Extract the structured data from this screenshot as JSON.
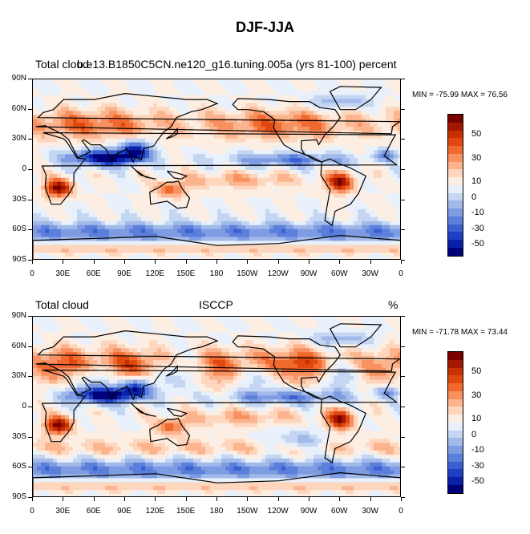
{
  "figure": {
    "title": "DJF-JJA"
  },
  "panels": [
    {
      "left_title": "Total cloud",
      "center_title": "b.e13.B1850C5CN.ne120_g16.tuning.005a (yrs 81-100) percent",
      "right_title": "",
      "min_max_text": "MIN = -75.99 MAX =  76.56"
    },
    {
      "left_title": "Total cloud",
      "center_title": "ISCCP",
      "right_title": "%",
      "min_max_text": "MIN = -71.78 MAX = 73.44"
    }
  ],
  "axes": {
    "lat_labels": [
      "90N",
      "60N",
      "30N",
      "0",
      "30S",
      "60S",
      "90S"
    ],
    "lon_labels": [
      "0",
      "30E",
      "60E",
      "90E",
      "120E",
      "150E",
      "180",
      "150W",
      "120W",
      "90W",
      "60W",
      "30W",
      "0"
    ]
  },
  "colorbar": {
    "labels": [
      "50",
      "30",
      "10",
      "0",
      "-10",
      "-30",
      "-50"
    ],
    "colors": [
      "#7a0000",
      "#a31800",
      "#c83000",
      "#e04810",
      "#f06a30",
      "#f89060",
      "#fbb48e",
      "#fdd6bd",
      "#fdeee3",
      "#e8f0fb",
      "#c4d6f2",
      "#a1baea",
      "#7f9ce2",
      "#5b7fda",
      "#3a5fd0",
      "#1c3fc4",
      "#0a20a8",
      "#00007a"
    ]
  },
  "chart_data": [
    {
      "type": "heatmap",
      "title": "DJF-JJA",
      "subtitle": "b.e13.B1850C5CN.ne120_g16.tuning.005a (yrs 81-100) percent",
      "field": "Total cloud",
      "min": -75.99,
      "max": 76.56,
      "x_ticks": [
        "0",
        "30E",
        "60E",
        "90E",
        "120E",
        "150E",
        "180",
        "150W",
        "120W",
        "90W",
        "60W",
        "30W",
        "0"
      ],
      "y_ticks": [
        "90N",
        "60N",
        "30N",
        "0",
        "30S",
        "60S",
        "90S"
      ],
      "color_levels": [
        -50,
        -30,
        -10,
        0,
        10,
        30,
        50
      ]
    },
    {
      "type": "heatmap",
      "subtitle": "ISCCP",
      "field": "Total cloud",
      "units": "%",
      "min": -71.78,
      "max": 73.44,
      "x_ticks": [
        "0",
        "30E",
        "60E",
        "90E",
        "120E",
        "150E",
        "180",
        "150W",
        "120W",
        "90W",
        "60W",
        "30W",
        "0"
      ],
      "y_ticks": [
        "90N",
        "60N",
        "30N",
        "0",
        "30S",
        "60S",
        "90S"
      ],
      "color_levels": [
        -50,
        -30,
        -10,
        0,
        10,
        30,
        50
      ]
    }
  ]
}
